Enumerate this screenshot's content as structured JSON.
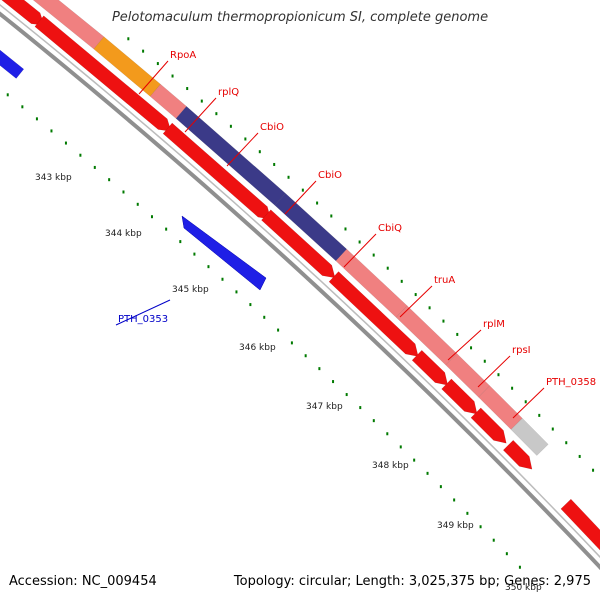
{
  "title": "Pelotomaculum thermopropionicum SI, complete genome",
  "accession": "Accession: NC_009454",
  "summary": "Topology: circular; Length: 3,025,375 bp; Genes: 2,975",
  "colors": {
    "background": "#ffffff",
    "backbone": "#8f8f8f",
    "cds_red": "#ee1111",
    "pink": "#f08080",
    "orange": "#f39a1c",
    "navy": "#3b3a88",
    "blue": "#1f1fe6",
    "gray_gene": "#c8c8c8",
    "tick_green": "#007a00",
    "label_red": "#e60000",
    "label_blue": "#0000c8"
  },
  "kbp_labels": [
    "343 kbp",
    "344 kbp",
    "345 kbp",
    "346 kbp",
    "347 kbp",
    "348 kbp",
    "349 kbp",
    "350 kbp"
  ],
  "gene_labels": [
    {
      "text": "RpoA",
      "color": "label_red"
    },
    {
      "text": "rplQ",
      "color": "label_red"
    },
    {
      "text": "CbiO",
      "color": "label_red"
    },
    {
      "text": "CbiO",
      "color": "label_red"
    },
    {
      "text": "CbiQ",
      "color": "label_red"
    },
    {
      "text": "truA",
      "color": "label_red"
    },
    {
      "text": "rplM",
      "color": "label_red"
    },
    {
      "text": "rpsI",
      "color": "label_red"
    },
    {
      "text": "PTH_0358",
      "color": "label_red"
    },
    {
      "text": "PTH_0353",
      "color": "label_blue"
    }
  ]
}
